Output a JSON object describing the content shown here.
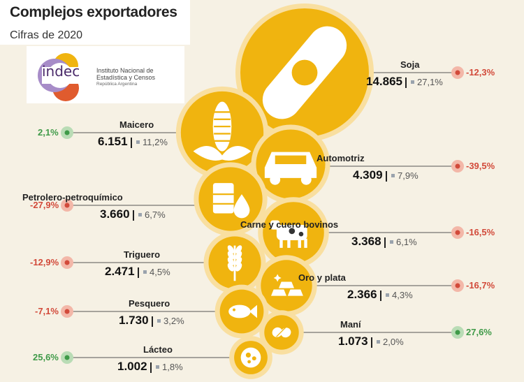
{
  "header": {
    "title": "Complejos exportadores",
    "subtitle": "Cifras de 2020"
  },
  "logo": {
    "word": "indec",
    "line1": "Instituto Nacional de",
    "line2": "Estadística y Censos",
    "line3": "República Argentina"
  },
  "colors": {
    "bubble": "#f0b40f",
    "ring": "#f9dfa0",
    "line": "#555555",
    "negative": "#d24a3a",
    "positive": "#3f9a48"
  },
  "chart_data": {
    "type": "bubble",
    "title": "Complejos exportadores",
    "subtitle": "Cifras de 2020",
    "items": [
      {
        "name": "Soja",
        "value_label": "14.865",
        "value": 14865,
        "share_label": "27,1%",
        "share": 27.1,
        "change_label": "-12,3%",
        "change": -12.3,
        "icon": "soybean-pod-icon"
      },
      {
        "name": "Maicero",
        "value_label": "6.151",
        "value": 6151,
        "share_label": "11,2%",
        "share": 11.2,
        "change_label": "2,1%",
        "change": 2.1,
        "icon": "corn-icon"
      },
      {
        "name": "Automotriz",
        "value_label": "4.309",
        "value": 4309,
        "share_label": "7,9%",
        "share": 7.9,
        "change_label": "-39,5%",
        "change": -39.5,
        "icon": "car-icon"
      },
      {
        "name": "Petrolero-petroquímico",
        "value_label": "3.660",
        "value": 3660,
        "share_label": "6,7%",
        "share": 6.7,
        "change_label": "-27,9%",
        "change": -27.9,
        "icon": "oil-barrel-icon"
      },
      {
        "name": "Carne y cuero bovinos",
        "value_label": "3.368",
        "value": 3368,
        "share_label": "6,1%",
        "share": 6.1,
        "change_label": "-16,5%",
        "change": -16.5,
        "icon": "cow-icon"
      },
      {
        "name": "Triguero",
        "value_label": "2.471",
        "value": 2471,
        "share_label": "4,5%",
        "share": 4.5,
        "change_label": "-12,9%",
        "change": -12.9,
        "icon": "wheat-icon"
      },
      {
        "name": "Oro y plata",
        "value_label": "2.366",
        "value": 2366,
        "share_label": "4,3%",
        "share": 4.3,
        "change_label": "-16,7%",
        "change": -16.7,
        "icon": "gold-bars-icon"
      },
      {
        "name": "Pesquero",
        "value_label": "1.730",
        "value": 1730,
        "share_label": "3,2%",
        "share": 3.2,
        "change_label": "-7,1%",
        "change": -7.1,
        "icon": "fish-icon"
      },
      {
        "name": "Maní",
        "value_label": "1.073",
        "value": 1073,
        "share_label": "2,0%",
        "share": 2.0,
        "change_label": "27,6%",
        "change": 27.6,
        "icon": "peanut-icon"
      },
      {
        "name": "Lácteo",
        "value_label": "1.002",
        "value": 1002,
        "share_label": "1,8%",
        "share": 1.8,
        "change_label": "25,6%",
        "change": 25.6,
        "icon": "milk-icon"
      }
    ]
  }
}
